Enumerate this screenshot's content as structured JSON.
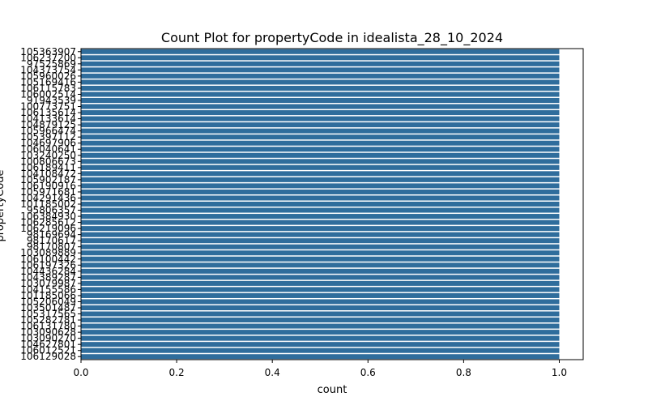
{
  "chart_data": {
    "type": "bar",
    "orientation": "horizontal",
    "title": "Count Plot for propertyCode in idealista_28_10_2024",
    "xlabel": "count",
    "ylabel": "propertyCode",
    "xlim": [
      0,
      1.05
    ],
    "xticks": [
      "0.0",
      "0.2",
      "0.4",
      "0.6",
      "0.8",
      "1.0"
    ],
    "bar_color": "#2f6d9c",
    "grid": false,
    "categories": [
      "105363907",
      "106237200",
      "97525869",
      "104373754",
      "105960026",
      "105169416",
      "106115783",
      "106002514",
      "91943539",
      "100773751",
      "106135614",
      "104133614",
      "104879125",
      "105966474",
      "105397112",
      "104697906",
      "106040641",
      "103240250",
      "100806673",
      "106189411",
      "104108472",
      "105902187",
      "106190916",
      "105971681",
      "104291436",
      "101185002",
      "95806357",
      "106384930",
      "106285612",
      "106219096",
      "98169694",
      "98170617",
      "98170807",
      "103089889",
      "106100442",
      "106197326",
      "104436284",
      "104389287",
      "103079987",
      "104155586",
      "101185066",
      "105206049",
      "103501487",
      "105317565",
      "105282781",
      "106131780",
      "103090628",
      "103090270",
      "104627801",
      "106012521",
      "106129028"
    ],
    "values": [
      1,
      1,
      1,
      1,
      1,
      1,
      1,
      1,
      1,
      1,
      1,
      1,
      1,
      1,
      1,
      1,
      1,
      1,
      1,
      1,
      1,
      1,
      1,
      1,
      1,
      1,
      1,
      1,
      1,
      1,
      1,
      1,
      1,
      1,
      1,
      1,
      1,
      1,
      1,
      1,
      1,
      1,
      1,
      1,
      1,
      1,
      1,
      1,
      1,
      1,
      1
    ]
  }
}
